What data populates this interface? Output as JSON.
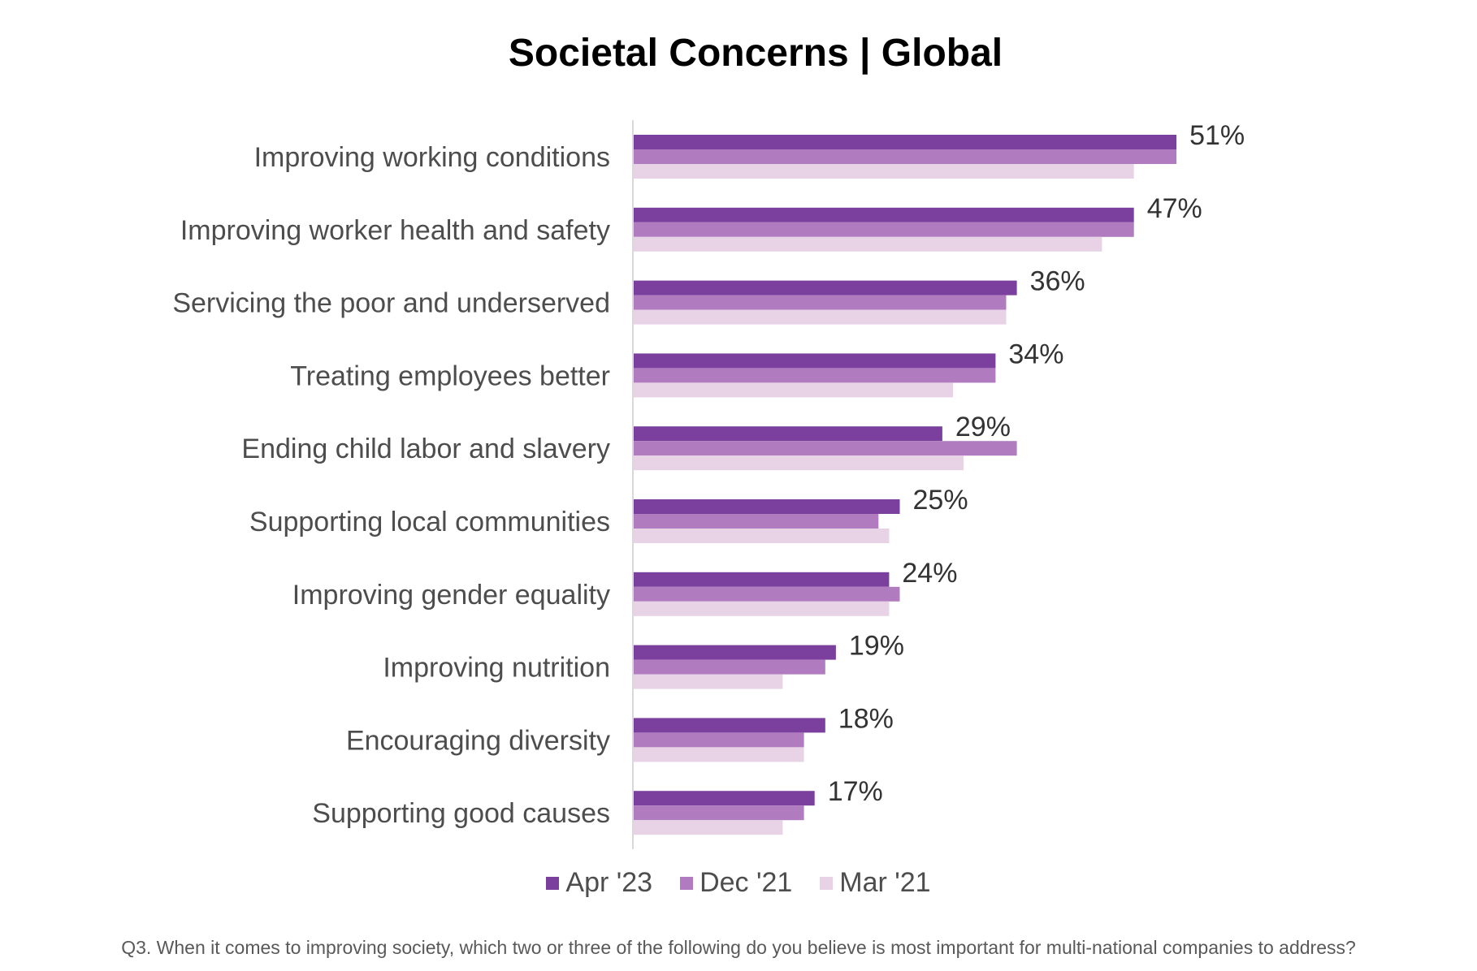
{
  "chart_data": {
    "type": "bar",
    "orientation": "horizontal",
    "title": "Societal Concerns | Global",
    "categories": [
      "Improving working conditions",
      "Improving worker health and safety",
      "Servicing the poor and underserved",
      "Treating employees better",
      "Ending child labor and slavery",
      "Supporting local communities",
      "Improving gender equality",
      "Improving nutrition",
      "Encouraging diversity",
      "Supporting good causes"
    ],
    "series": [
      {
        "name": "Apr '23",
        "color": "#7b3f9e",
        "values": [
          51,
          47,
          36,
          34,
          29,
          25,
          24,
          19,
          18,
          17
        ]
      },
      {
        "name": "Dec '21",
        "color": "#b07cbf",
        "values": [
          51,
          47,
          35,
          34,
          36,
          23,
          25,
          18,
          16,
          16
        ]
      },
      {
        "name": "Mar '21",
        "color": "#e8d2e6",
        "values": [
          47,
          44,
          35,
          30,
          31,
          24,
          24,
          14,
          16,
          14
        ]
      }
    ],
    "data_labels": [
      "51%",
      "47%",
      "36%",
      "34%",
      "29%",
      "25%",
      "24%",
      "19%",
      "18%",
      "17%"
    ],
    "xlim": [
      0,
      60
    ],
    "legend_position": "bottom",
    "grid": false
  },
  "footnote": "Q3. When it comes to improving society, which two or three of the following do you believe is most important for multi-national companies to address?"
}
